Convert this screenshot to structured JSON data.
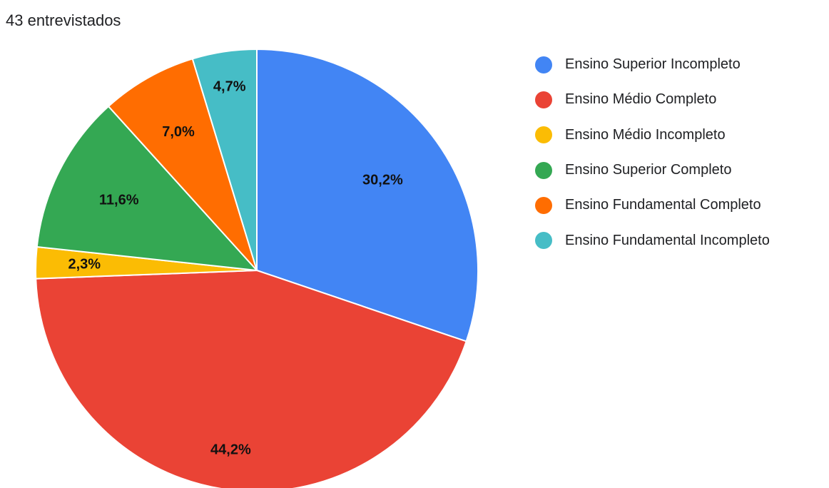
{
  "chart_data": {
    "type": "pie",
    "subtitle": "43 entrevistados",
    "categories": [
      "Ensino Superior Incompleto",
      "Ensino Médio Completo",
      "Ensino Médio Incompleto",
      "Ensino Superior Completo",
      "Ensino Fundamental Completo",
      "Ensino Fundamental Incompleto"
    ],
    "values": [
      30.2,
      44.2,
      2.3,
      11.6,
      7.0,
      4.7
    ],
    "data_labels": [
      "30,2%",
      "44,2%",
      "2,3%",
      "11,6%",
      "7,0%",
      "4,7%"
    ],
    "colors": [
      "#4285f4",
      "#ea4335",
      "#fbbc04",
      "#34a853",
      "#ff6d01",
      "#46bdc6"
    ],
    "legend_position": "right",
    "start_angle": "12 o'clock",
    "direction": "clockwise"
  }
}
